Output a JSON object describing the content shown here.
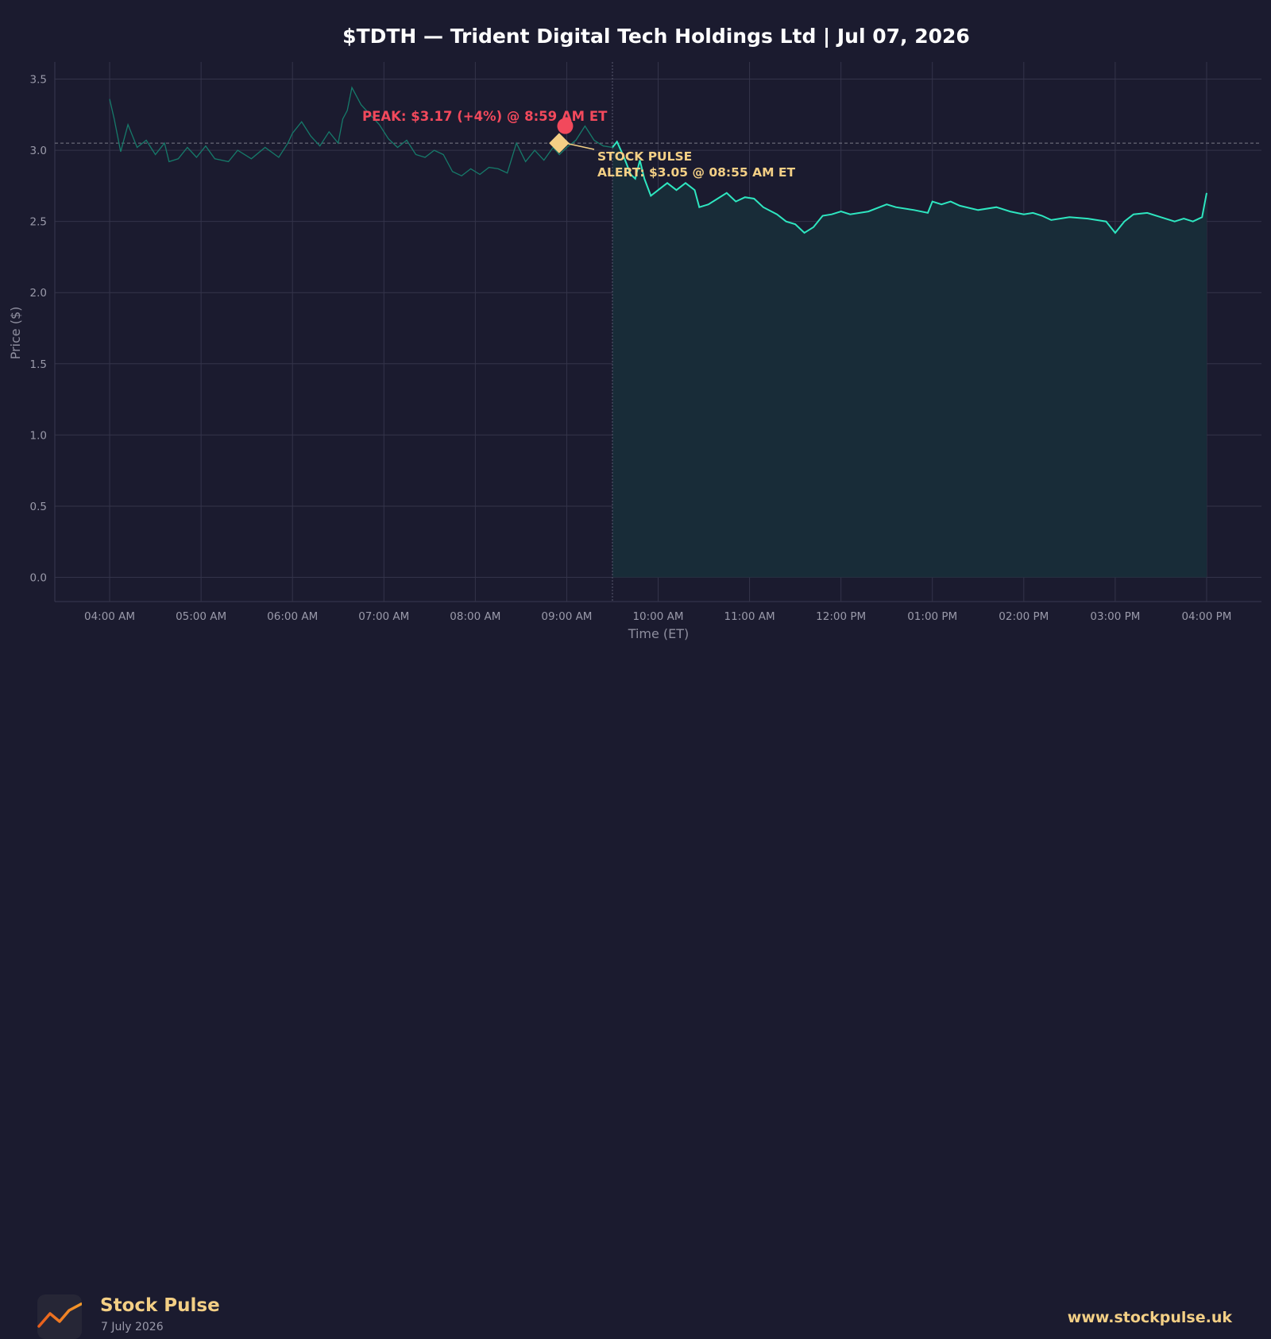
{
  "chart_data": {
    "type": "line",
    "title": "$TDTH — Trident Digital Tech Holdings Ltd  |  Jul 07, 2026",
    "xlabel": "Time (ET)",
    "ylabel": "Price ($)",
    "x_tick_labels": [
      "04:00 AM",
      "05:00 AM",
      "06:00 AM",
      "07:00 AM",
      "08:00 AM",
      "09:00 AM",
      "10:00 AM",
      "11:00 AM",
      "12:00 PM",
      "01:00 PM",
      "02:00 PM",
      "03:00 PM",
      "04:00 PM"
    ],
    "x_range_hours": [
      3.4,
      16.6
    ],
    "y_ticks": [
      0.0,
      0.5,
      1.0,
      1.5,
      2.0,
      2.5,
      3.0,
      3.5
    ],
    "y_tick_labels": [
      "0.0",
      "0.5",
      "1.0",
      "1.5",
      "2.0",
      "2.5",
      "3.0",
      "3.5"
    ],
    "ylim": [
      -0.17,
      3.62
    ],
    "grid": true,
    "session_split_hour": 9.5,
    "reference_price": 3.05,
    "series": [
      {
        "segment": "pre-market",
        "color": "#167a6a",
        "points": [
          [
            4.0,
            3.36
          ],
          [
            4.05,
            3.22
          ],
          [
            4.12,
            2.99
          ],
          [
            4.2,
            3.18
          ],
          [
            4.3,
            3.02
          ],
          [
            4.4,
            3.07
          ],
          [
            4.5,
            2.97
          ],
          [
            4.6,
            3.05
          ],
          [
            4.65,
            2.92
          ],
          [
            4.75,
            2.94
          ],
          [
            4.85,
            3.02
          ],
          [
            4.95,
            2.95
          ],
          [
            5.05,
            3.03
          ],
          [
            5.15,
            2.94
          ],
          [
            5.3,
            2.92
          ],
          [
            5.4,
            3.0
          ],
          [
            5.55,
            2.94
          ],
          [
            5.7,
            3.02
          ],
          [
            5.85,
            2.95
          ],
          [
            5.95,
            3.05
          ],
          [
            6.0,
            3.12
          ],
          [
            6.1,
            3.2
          ],
          [
            6.2,
            3.1
          ],
          [
            6.3,
            3.03
          ],
          [
            6.4,
            3.13
          ],
          [
            6.5,
            3.05
          ],
          [
            6.55,
            3.22
          ],
          [
            6.6,
            3.28
          ],
          [
            6.65,
            3.44
          ],
          [
            6.75,
            3.32
          ],
          [
            6.85,
            3.25
          ],
          [
            6.95,
            3.18
          ],
          [
            7.05,
            3.08
          ],
          [
            7.15,
            3.02
          ],
          [
            7.25,
            3.07
          ],
          [
            7.35,
            2.97
          ],
          [
            7.45,
            2.95
          ],
          [
            7.55,
            3.0
          ],
          [
            7.65,
            2.97
          ],
          [
            7.75,
            2.85
          ],
          [
            7.85,
            2.82
          ],
          [
            7.95,
            2.87
          ],
          [
            8.05,
            2.83
          ],
          [
            8.15,
            2.88
          ],
          [
            8.25,
            2.87
          ],
          [
            8.35,
            2.84
          ],
          [
            8.45,
            3.05
          ],
          [
            8.55,
            2.92
          ],
          [
            8.65,
            3.0
          ],
          [
            8.75,
            2.93
          ],
          [
            8.85,
            3.02
          ],
          [
            8.92,
            2.97
          ],
          [
            9.0,
            3.02
          ],
          [
            9.1,
            3.07
          ],
          [
            9.2,
            3.17
          ],
          [
            9.3,
            3.07
          ],
          [
            9.4,
            3.03
          ],
          [
            9.5,
            3.02
          ]
        ]
      },
      {
        "segment": "regular",
        "color": "#2ee6c0",
        "points": [
          [
            9.5,
            3.02
          ],
          [
            9.55,
            3.06
          ],
          [
            9.62,
            2.96
          ],
          [
            9.7,
            2.83
          ],
          [
            9.75,
            2.8
          ],
          [
            9.8,
            2.93
          ],
          [
            9.85,
            2.8
          ],
          [
            9.92,
            2.68
          ],
          [
            10.0,
            2.72
          ],
          [
            10.1,
            2.77
          ],
          [
            10.2,
            2.72
          ],
          [
            10.3,
            2.77
          ],
          [
            10.4,
            2.72
          ],
          [
            10.45,
            2.6
          ],
          [
            10.55,
            2.62
          ],
          [
            10.65,
            2.66
          ],
          [
            10.75,
            2.7
          ],
          [
            10.85,
            2.64
          ],
          [
            10.95,
            2.67
          ],
          [
            11.05,
            2.66
          ],
          [
            11.15,
            2.6
          ],
          [
            11.3,
            2.55
          ],
          [
            11.4,
            2.5
          ],
          [
            11.5,
            2.48
          ],
          [
            11.6,
            2.42
          ],
          [
            11.7,
            2.46
          ],
          [
            11.8,
            2.54
          ],
          [
            11.9,
            2.55
          ],
          [
            12.0,
            2.57
          ],
          [
            12.1,
            2.55
          ],
          [
            12.3,
            2.57
          ],
          [
            12.5,
            2.62
          ],
          [
            12.6,
            2.6
          ],
          [
            12.8,
            2.58
          ],
          [
            12.95,
            2.56
          ],
          [
            13.0,
            2.64
          ],
          [
            13.1,
            2.62
          ],
          [
            13.2,
            2.64
          ],
          [
            13.3,
            2.61
          ],
          [
            13.5,
            2.58
          ],
          [
            13.7,
            2.6
          ],
          [
            13.85,
            2.57
          ],
          [
            14.0,
            2.55
          ],
          [
            14.1,
            2.56
          ],
          [
            14.2,
            2.54
          ],
          [
            14.3,
            2.51
          ],
          [
            14.5,
            2.53
          ],
          [
            14.7,
            2.52
          ],
          [
            14.9,
            2.5
          ],
          [
            15.0,
            2.42
          ],
          [
            15.1,
            2.5
          ],
          [
            15.2,
            2.55
          ],
          [
            15.35,
            2.56
          ],
          [
            15.5,
            2.53
          ],
          [
            15.65,
            2.5
          ],
          [
            15.75,
            2.52
          ],
          [
            15.85,
            2.5
          ],
          [
            15.95,
            2.53
          ],
          [
            16.0,
            2.7
          ]
        ]
      }
    ],
    "annotations": {
      "peak": {
        "text": "PEAK: $3.17 (+4%) @ 8:59 AM ET",
        "hour": 8.983,
        "price": 3.17,
        "color": "#f2495c"
      },
      "alert": {
        "line1": "STOCK PULSE",
        "line2": "ALERT: $3.05 @ 08:55 AM ET",
        "hour": 8.917,
        "price": 3.05,
        "color": "#f3cf85"
      }
    }
  },
  "footer": {
    "brand": "Stock Pulse",
    "date": "7 July 2026",
    "website": "www.stockpulse.uk",
    "logo_icon": "trend-line-icon"
  }
}
